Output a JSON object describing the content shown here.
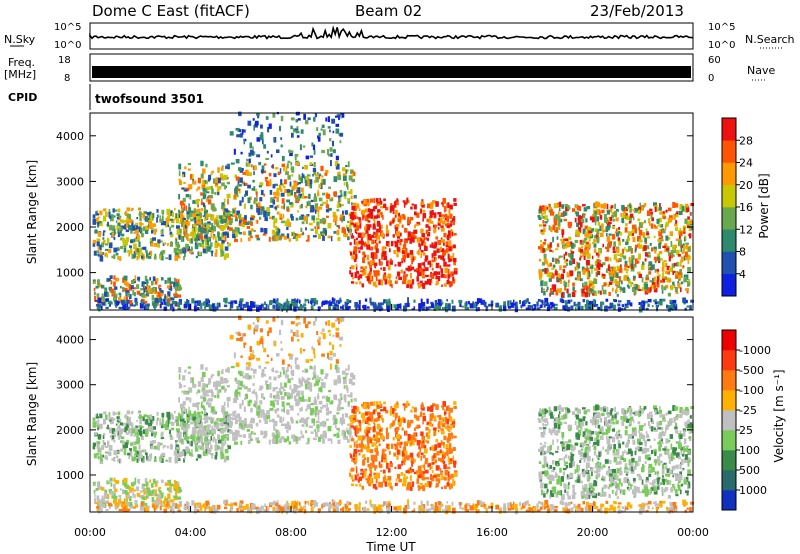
{
  "header": {
    "station": "Dome C East (fitACF)",
    "beam": "Beam 02",
    "date": "23/Feb/2013"
  },
  "top_panels": {
    "nsky": {
      "left_label": "N.Sky",
      "left_ticks": [
        "10^5",
        "10^0"
      ],
      "right_label": "N.Search",
      "right_ticks": [
        "10^5",
        "10^0"
      ]
    },
    "freq": {
      "left_label_1": "Freq.",
      "left_label_2": "[MHz]",
      "left_ticks": [
        "18",
        "8"
      ],
      "right_label": "Nave",
      "right_ticks": [
        "60",
        "0"
      ]
    },
    "cpid": {
      "label": "CPID",
      "program": "twofsound 3501"
    }
  },
  "chart_data": [
    {
      "type": "heatmap",
      "name": "power",
      "ylabel": "Slant Range [km]",
      "yticks": [
        1000,
        2000,
        3000,
        4000
      ],
      "ylim": [
        180,
        4500
      ],
      "colorbar": {
        "title": "Power [dB]",
        "ticks": [
          4,
          8,
          12,
          16,
          20,
          24,
          28
        ],
        "colors": [
          "#1020e0",
          "#2050b0",
          "#2e8a6c",
          "#6aa84f",
          "#c8c800",
          "#ff9900",
          "#ff5500",
          "#ee1111"
        ]
      }
    },
    {
      "type": "heatmap",
      "name": "velocity",
      "ylabel": "Slant Range [km]",
      "yticks": [
        1000,
        2000,
        3000,
        4000
      ],
      "ylim": [
        180,
        4500
      ],
      "colorbar": {
        "title": "Velocity [m s⁻¹]",
        "ticks": [
          "1000",
          "500",
          "100",
          "25",
          "-25",
          "-100",
          "-500",
          "-1000"
        ],
        "colors": [
          "#1030c0",
          "#2a6a6a",
          "#3a8a4a",
          "#7acc5a",
          "#c0c0c0",
          "#ffb000",
          "#ff7a10",
          "#ff3a10",
          "#ee0000"
        ]
      }
    }
  ],
  "x_axis": {
    "xlabel": "Time UT",
    "ticks": [
      "00:00",
      "04:00",
      "08:00",
      "12:00",
      "16:00",
      "20:00",
      "00:00"
    ]
  }
}
